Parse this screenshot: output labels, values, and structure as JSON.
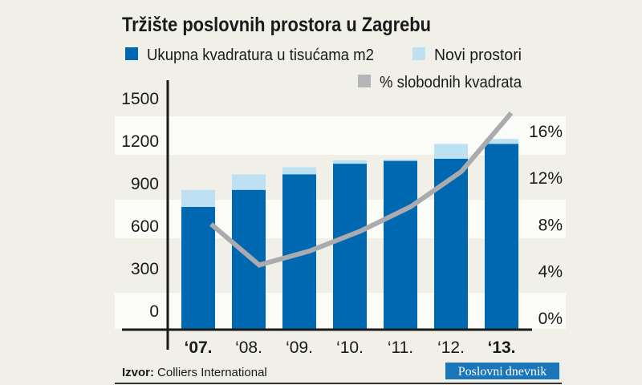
{
  "chart_data": {
    "type": "bar",
    "title": "Tržište poslovnih prostora u Zagrebu",
    "categories": [
      "‘07.",
      "‘08.",
      "‘09.",
      "‘10.",
      "‘11.",
      "‘12.",
      "‘13."
    ],
    "bold_categories": [
      "‘07.",
      "‘13."
    ],
    "series": [
      {
        "name": "Ukupna kvadratura u tisućama m2",
        "type": "bar",
        "stack": "main",
        "color": "#0068b1",
        "values": [
          730,
          850,
          960,
          1035,
          1055,
          1070,
          1175
        ]
      },
      {
        "name": "Novi prostori",
        "type": "bar",
        "stack": "main",
        "color": "#bde0f3",
        "values": [
          120,
          110,
          50,
          25,
          10,
          105,
          35
        ]
      },
      {
        "name": "% slobodnih kvadrata",
        "type": "line",
        "axis": "right",
        "color": "#a9abae",
        "values": [
          8,
          4.5,
          5.7,
          7.4,
          9.5,
          12.5,
          17.5
        ]
      }
    ],
    "left_axis": {
      "ticks": [
        "0",
        "300",
        "600",
        "900",
        "1200",
        "1500"
      ],
      "range": [
        0,
        1500
      ]
    },
    "right_axis": {
      "ticks": [
        "0%",
        "4%",
        "8%",
        "12%",
        "16%"
      ],
      "range": [
        0,
        16
      ]
    },
    "grid": "alternating horizontal bands",
    "legend_placement": "top"
  },
  "source": {
    "label": "Izvor:",
    "value": "Colliers International"
  },
  "logo": {
    "text_bold": "Poslovni",
    "text": "dnevnik",
    "color": "#1a75bb"
  }
}
